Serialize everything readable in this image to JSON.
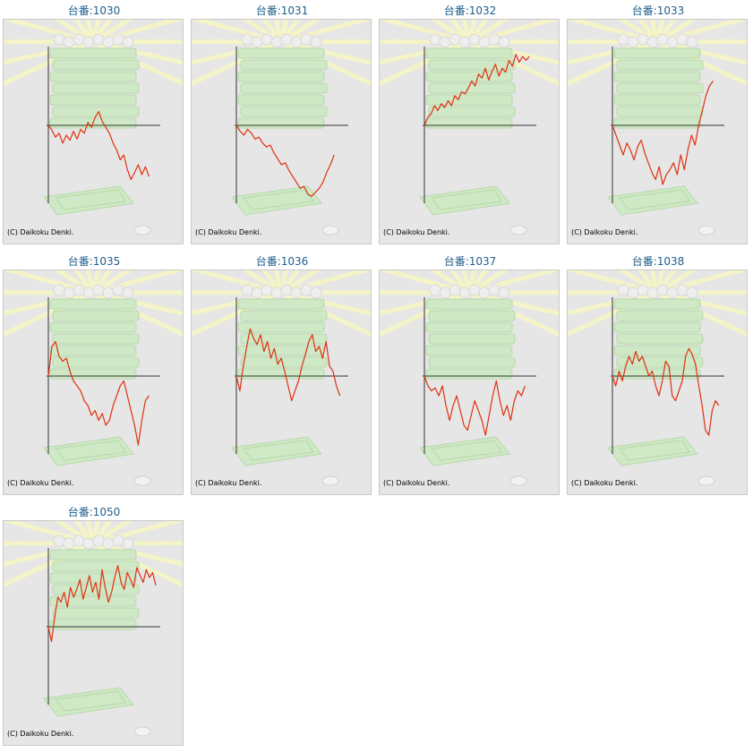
{
  "colors": {
    "line": "#e03010",
    "axis": "#333333",
    "title": "#1f5e8c",
    "frame_bg": "#e6e6e6"
  },
  "chart_data": [
    {
      "type": "line",
      "title": "台番:1030",
      "credit": "(C) Daikoku Denki.",
      "values": [
        0,
        -5,
        -12,
        -8,
        -18,
        -10,
        -15,
        -6,
        -14,
        -4,
        -8,
        3,
        -2,
        8,
        14,
        4,
        -2,
        -8,
        -18,
        -25,
        -35,
        -30,
        -45,
        -55,
        -48,
        -40,
        -50,
        -42,
        -52
      ]
    },
    {
      "type": "line",
      "title": "台番:1031",
      "credit": "(C) Daikoku Denki.",
      "values": [
        0,
        -6,
        -10,
        -4,
        -8,
        -14,
        -12,
        -18,
        -22,
        -20,
        -28,
        -34,
        -40,
        -38,
        -46,
        -52,
        -58,
        -64,
        -62,
        -70,
        -72,
        -68,
        -64,
        -58,
        -48,
        -40,
        -30
      ]
    },
    {
      "type": "line",
      "title": "台番:1032",
      "credit": "(C) Daikoku Denki.",
      "values": [
        0,
        8,
        12,
        20,
        15,
        22,
        18,
        25,
        20,
        30,
        26,
        34,
        32,
        38,
        45,
        40,
        52,
        48,
        58,
        46,
        55,
        62,
        50,
        58,
        54,
        66,
        60,
        72,
        64,
        70,
        66,
        70
      ]
    },
    {
      "type": "line",
      "title": "台番:1033",
      "credit": "(C) Daikoku Denki.",
      "values": [
        0,
        -10,
        -20,
        -30,
        -18,
        -25,
        -35,
        -22,
        -15,
        -28,
        -38,
        -48,
        -55,
        -42,
        -60,
        -50,
        -45,
        -38,
        -50,
        -30,
        -45,
        -25,
        -10,
        -20,
        0,
        15,
        30,
        40,
        45
      ]
    },
    {
      "type": "line",
      "title": "台番:1035",
      "credit": "(C) Daikoku Denki.",
      "values": [
        0,
        30,
        35,
        20,
        15,
        18,
        5,
        -5,
        -10,
        -15,
        -25,
        -30,
        -40,
        -35,
        -45,
        -38,
        -50,
        -45,
        -30,
        -20,
        -10,
        -5,
        -20,
        -35,
        -50,
        -70,
        -45,
        -25,
        -20
      ]
    },
    {
      "type": "line",
      "title": "台番:1036",
      "credit": "(C) Daikoku Denki.",
      "values": [
        0,
        -15,
        10,
        30,
        48,
        38,
        32,
        42,
        25,
        35,
        18,
        28,
        12,
        18,
        5,
        -10,
        -25,
        -15,
        -5,
        10,
        22,
        35,
        42,
        25,
        30,
        18,
        35,
        10,
        5,
        -10,
        -20
      ]
    },
    {
      "type": "line",
      "title": "台番:1037",
      "credit": "(C) Daikoku Denki.",
      "values": [
        0,
        -10,
        -15,
        -12,
        -20,
        -10,
        -30,
        -45,
        -30,
        -20,
        -35,
        -50,
        -55,
        -40,
        -25,
        -35,
        -45,
        -60,
        -40,
        -20,
        -5,
        -25,
        -40,
        -30,
        -45,
        -25,
        -15,
        -20,
        -10
      ]
    },
    {
      "type": "line",
      "title": "台番:1038",
      "credit": "(C) Daikoku Denki.",
      "values": [
        0,
        -10,
        5,
        -5,
        10,
        20,
        12,
        25,
        15,
        20,
        10,
        0,
        5,
        -10,
        -20,
        -5,
        15,
        10,
        -20,
        -25,
        -15,
        -5,
        20,
        28,
        22,
        12,
        -10,
        -30,
        -55,
        -60,
        -35,
        -25,
        -30
      ]
    },
    {
      "type": "line",
      "title": "台番:1050",
      "credit": "(C) Daikoku Denki.",
      "values": [
        0,
        -15,
        10,
        30,
        25,
        35,
        20,
        40,
        30,
        38,
        48,
        28,
        40,
        52,
        35,
        45,
        28,
        58,
        40,
        25,
        35,
        50,
        62,
        45,
        38,
        55,
        48,
        40,
        60,
        52,
        45,
        58,
        50,
        55,
        42
      ]
    }
  ]
}
